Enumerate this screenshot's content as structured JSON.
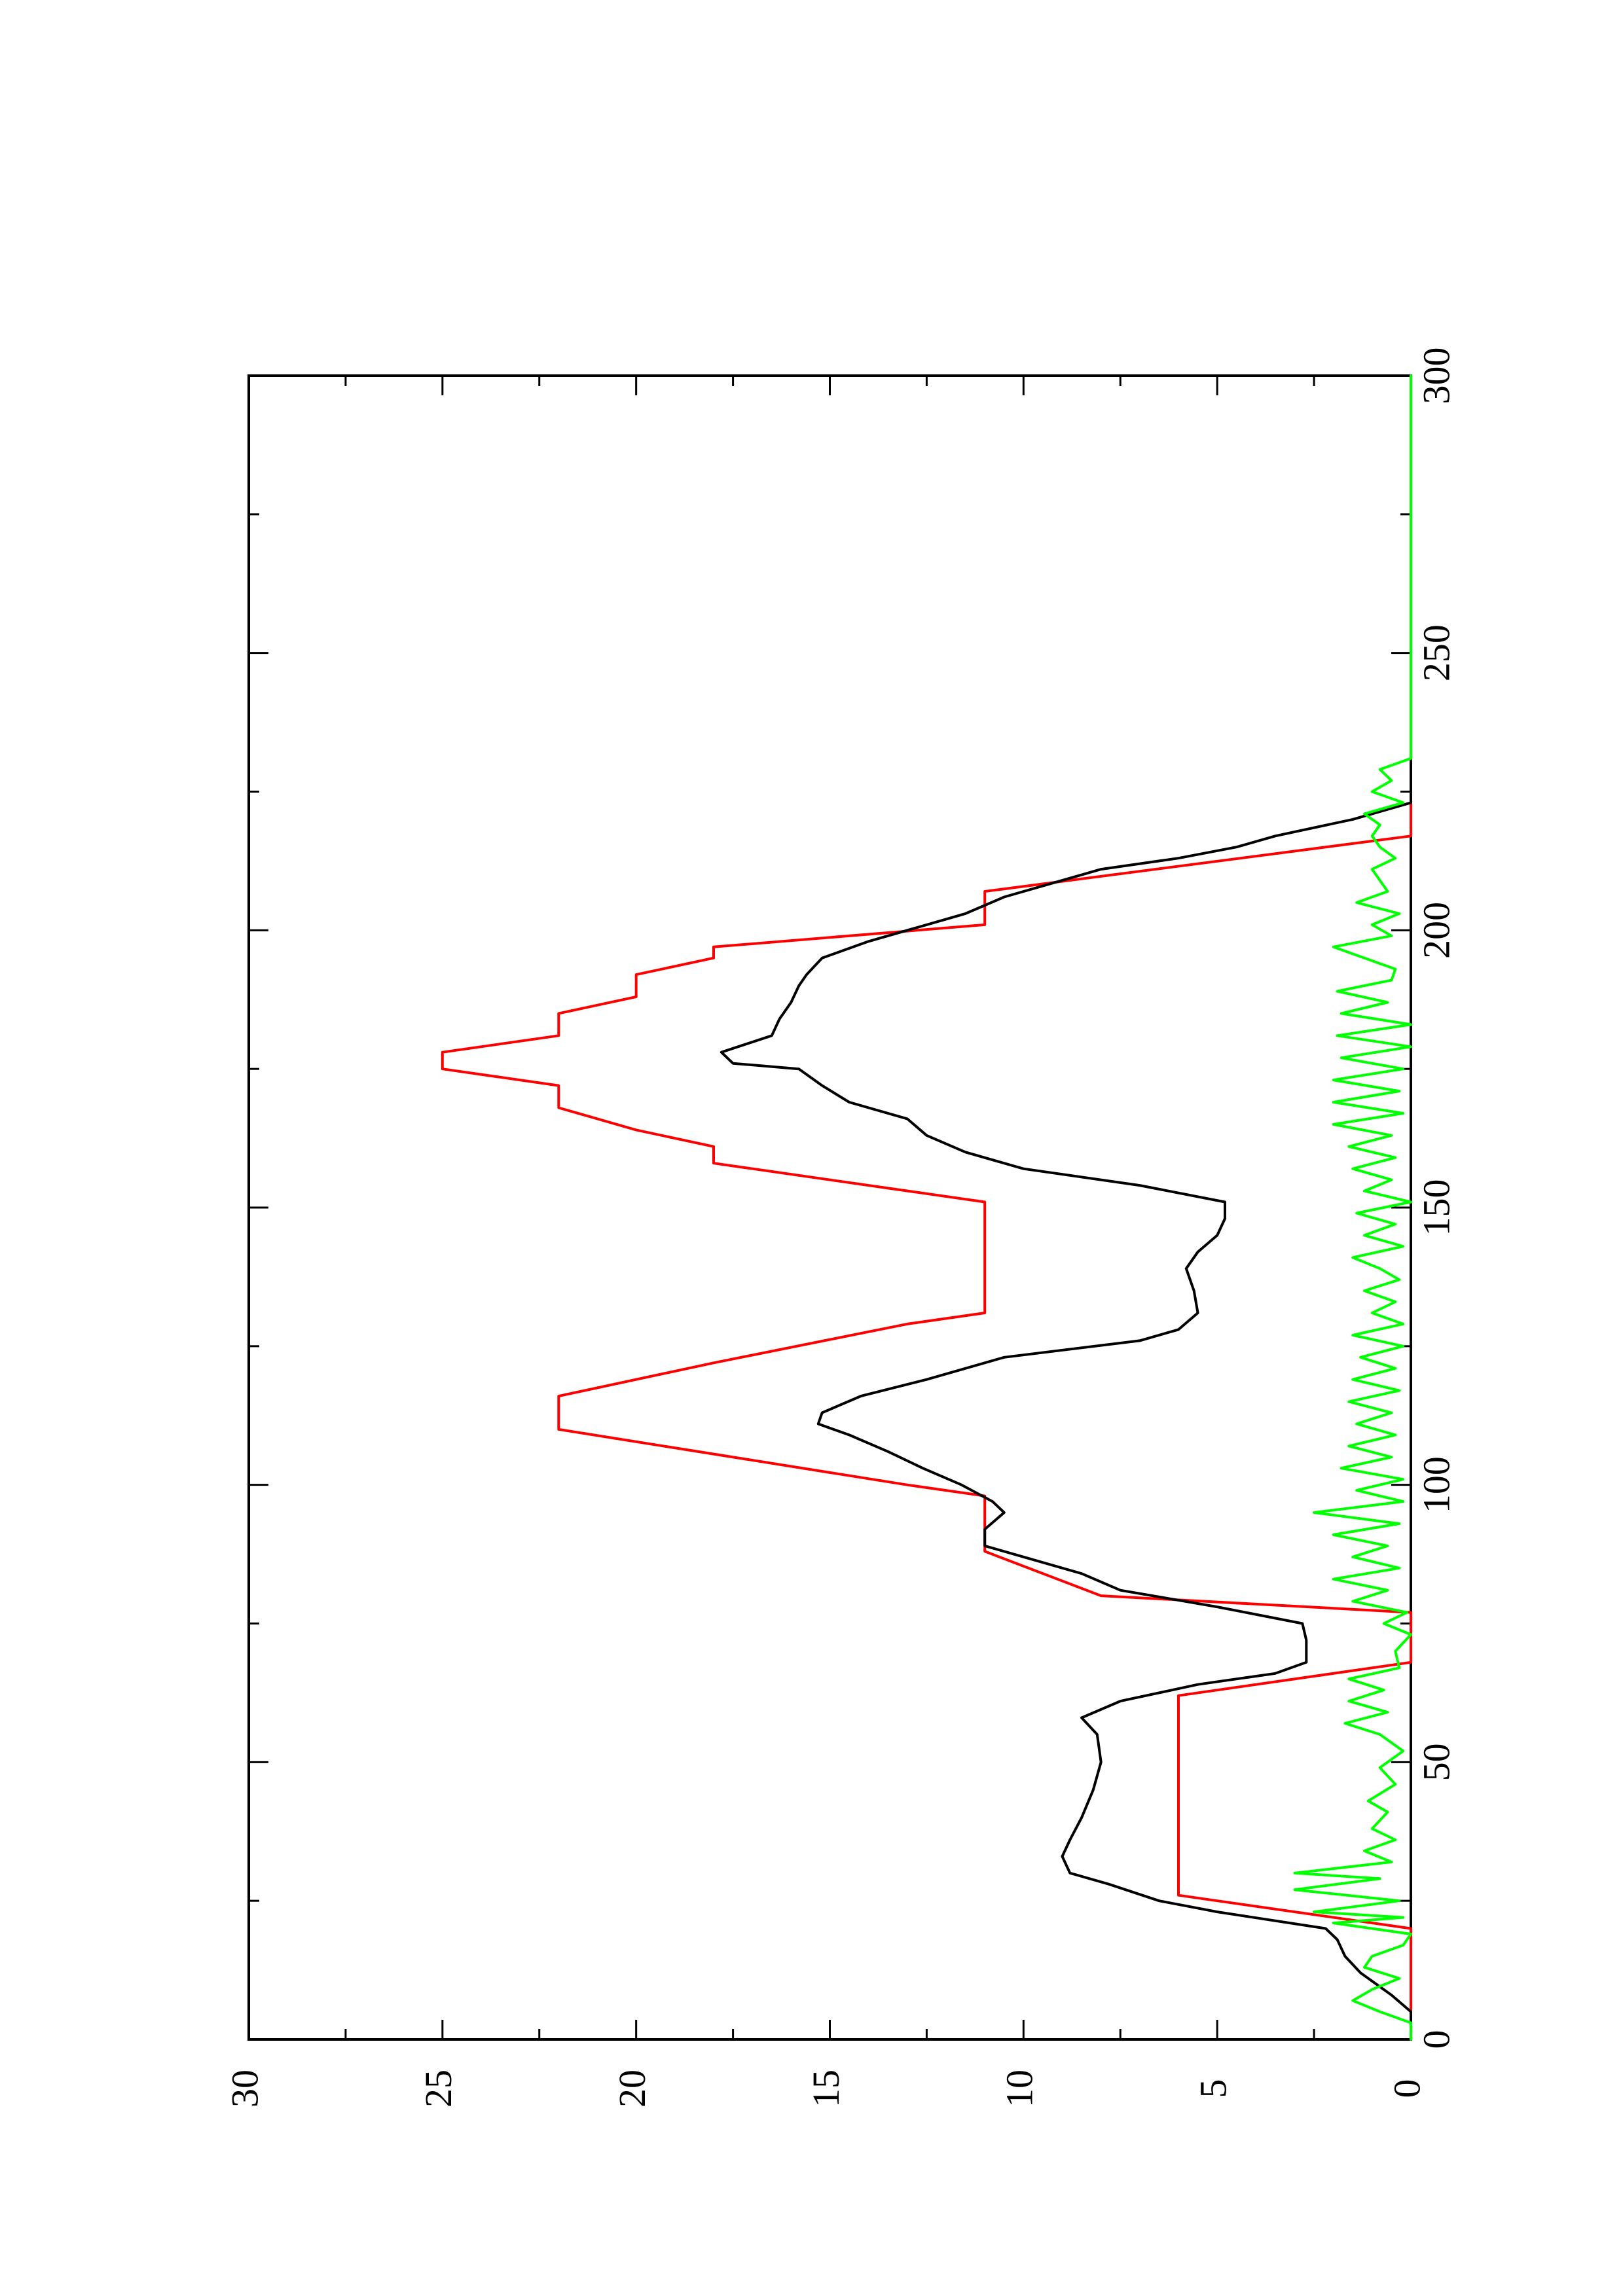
{
  "chart_data": {
    "type": "line",
    "title": "",
    "xlabel": "",
    "ylabel": "",
    "orientation": "rotated 90 degrees counter-clockwise",
    "xlim": [
      0,
      300
    ],
    "ylim": [
      0,
      30
    ],
    "x_ticks": [
      0,
      50,
      100,
      150,
      200,
      250,
      300
    ],
    "x_tick_labels": [
      "0",
      "50",
      "100",
      "150",
      "200",
      "250",
      "300"
    ],
    "y_ticks": [
      0,
      5,
      10,
      15,
      20,
      25,
      30
    ],
    "y_tick_labels": [
      "0",
      "5",
      "10",
      "15",
      "20",
      "25",
      "30"
    ],
    "x_minor_ticks": [
      25,
      75,
      125,
      175,
      225,
      275
    ],
    "y_minor_ticks": [
      2.5,
      7.5,
      12.5,
      17.5,
      22.5,
      27.5
    ],
    "grid": false,
    "legend": null,
    "series": [
      {
        "color": "#ff0000",
        "points": [
          [
            0,
            0
          ],
          [
            20,
            0
          ],
          [
            26,
            6
          ],
          [
            62,
            6
          ],
          [
            68,
            0
          ],
          [
            77,
            0
          ],
          [
            80,
            8
          ],
          [
            88,
            11
          ],
          [
            98,
            11
          ],
          [
            100,
            13
          ],
          [
            110,
            22
          ],
          [
            116,
            22
          ],
          [
            122,
            18
          ],
          [
            129,
            13
          ],
          [
            131,
            11
          ],
          [
            151,
            11
          ],
          [
            158,
            18
          ],
          [
            161,
            18
          ],
          [
            164,
            20
          ],
          [
            168,
            22
          ],
          [
            172,
            22
          ],
          [
            175,
            25
          ],
          [
            178,
            25
          ],
          [
            181,
            22
          ],
          [
            185,
            22
          ],
          [
            188,
            20
          ],
          [
            192,
            20
          ],
          [
            195,
            18
          ],
          [
            197,
            18
          ],
          [
            201,
            11
          ],
          [
            207,
            11
          ],
          [
            217,
            0
          ],
          [
            300,
            0
          ]
        ]
      },
      {
        "color": "#000000",
        "points": [
          [
            0,
            0
          ],
          [
            5,
            0
          ],
          [
            8,
            0.5
          ],
          [
            10,
            0.9
          ],
          [
            12,
            1.3
          ],
          [
            15,
            1.7
          ],
          [
            18,
            1.9
          ],
          [
            20,
            2.2
          ],
          [
            23,
            5.0
          ],
          [
            25,
            6.5
          ],
          [
            28,
            7.8
          ],
          [
            30,
            8.8
          ],
          [
            33,
            9.0
          ],
          [
            36,
            8.8
          ],
          [
            40,
            8.5
          ],
          [
            45,
            8.2
          ],
          [
            50,
            8.0
          ],
          [
            55,
            8.1
          ],
          [
            58,
            8.5
          ],
          [
            61,
            7.5
          ],
          [
            64,
            5.5
          ],
          [
            66,
            3.5
          ],
          [
            68,
            2.7
          ],
          [
            72,
            2.7
          ],
          [
            75,
            2.8
          ],
          [
            78,
            5.0
          ],
          [
            81,
            7.5
          ],
          [
            84,
            8.5
          ],
          [
            87,
            10.0
          ],
          [
            89,
            11.0
          ],
          [
            92,
            11.0
          ],
          [
            95,
            10.5
          ],
          [
            97,
            10.8
          ],
          [
            100,
            11.6
          ],
          [
            103,
            12.6
          ],
          [
            106,
            13.5
          ],
          [
            109,
            14.5
          ],
          [
            111,
            15.3
          ],
          [
            113,
            15.2
          ],
          [
            116,
            14.2
          ],
          [
            119,
            12.5
          ],
          [
            123,
            10.5
          ],
          [
            126,
            7.0
          ],
          [
            128,
            6.0
          ],
          [
            131,
            5.5
          ],
          [
            135,
            5.6
          ],
          [
            139,
            5.8
          ],
          [
            142,
            5.5
          ],
          [
            145,
            5.0
          ],
          [
            148,
            4.8
          ],
          [
            151,
            4.8
          ],
          [
            154,
            7.0
          ],
          [
            157,
            10.0
          ],
          [
            160,
            11.5
          ],
          [
            163,
            12.5
          ],
          [
            166,
            13.0
          ],
          [
            169,
            14.5
          ],
          [
            172,
            15.2
          ],
          [
            175,
            15.8
          ],
          [
            176,
            17.5
          ],
          [
            178,
            17.8
          ],
          [
            181,
            16.5
          ],
          [
            184,
            16.3
          ],
          [
            187,
            16.0
          ],
          [
            190,
            15.8
          ],
          [
            192,
            15.6
          ],
          [
            195,
            15.2
          ],
          [
            198,
            14.0
          ],
          [
            201,
            12.5
          ],
          [
            203,
            11.5
          ],
          [
            206,
            10.5
          ],
          [
            209,
            9.0
          ],
          [
            211,
            8.0
          ],
          [
            213,
            6.0
          ],
          [
            215,
            4.5
          ],
          [
            217,
            3.5
          ],
          [
            220,
            1.5
          ],
          [
            223,
            0
          ],
          [
            300,
            0
          ]
        ]
      },
      {
        "color": "#00ff00",
        "points": [
          [
            0,
            0
          ],
          [
            3,
            0
          ],
          [
            5,
            0.8
          ],
          [
            7,
            1.5
          ],
          [
            9,
            1.0
          ],
          [
            11,
            0.3
          ],
          [
            13,
            1.2
          ],
          [
            15,
            1.0
          ],
          [
            17,
            0.2
          ],
          [
            19,
            0
          ],
          [
            21,
            2.0
          ],
          [
            22,
            0.2
          ],
          [
            23,
            2.5
          ],
          [
            25,
            0.3
          ],
          [
            27,
            3.0
          ],
          [
            29,
            0.8
          ],
          [
            30,
            3.0
          ],
          [
            32,
            0.5
          ],
          [
            34,
            1.2
          ],
          [
            36,
            0.4
          ],
          [
            38,
            1.0
          ],
          [
            41,
            0.6
          ],
          [
            43,
            1.1
          ],
          [
            46,
            0.4
          ],
          [
            49,
            0.8
          ],
          [
            52,
            0.2
          ],
          [
            55,
            0.8
          ],
          [
            57,
            1.7
          ],
          [
            59,
            0.6
          ],
          [
            61,
            1.6
          ],
          [
            63,
            0.7
          ],
          [
            65,
            1.6
          ],
          [
            67,
            0.3
          ],
          [
            70,
            0.4
          ],
          [
            73,
            0
          ],
          [
            75,
            0.7
          ],
          [
            77,
            0.1
          ],
          [
            79,
            1.5
          ],
          [
            81,
            0.6
          ],
          [
            83,
            2.0
          ],
          [
            85,
            0.3
          ],
          [
            87,
            1.5
          ],
          [
            89,
            0.6
          ],
          [
            91,
            2.0
          ],
          [
            93,
            0.3
          ],
          [
            95,
            2.5
          ],
          [
            97,
            0.2
          ],
          [
            99,
            1.4
          ],
          [
            101,
            0.2
          ],
          [
            103,
            1.8
          ],
          [
            105,
            0.5
          ],
          [
            107,
            1.6
          ],
          [
            109,
            0.4
          ],
          [
            111,
            1.4
          ],
          [
            113,
            0.5
          ],
          [
            115,
            1.6
          ],
          [
            117,
            0.3
          ],
          [
            119,
            1.5
          ],
          [
            121,
            0.4
          ],
          [
            123,
            1.3
          ],
          [
            125,
            0.2
          ],
          [
            127,
            1.5
          ],
          [
            129,
            0.2
          ],
          [
            131,
            1.0
          ],
          [
            133,
            0.4
          ],
          [
            135,
            1.2
          ],
          [
            137,
            0.3
          ],
          [
            139,
            0.8
          ],
          [
            141,
            1.5
          ],
          [
            143,
            0.2
          ],
          [
            145,
            1.2
          ],
          [
            147,
            0.4
          ],
          [
            149,
            1.4
          ],
          [
            151,
            0
          ],
          [
            153,
            1.2
          ],
          [
            155,
            0.5
          ],
          [
            157,
            1.5
          ],
          [
            159,
            0.4
          ],
          [
            161,
            1.6
          ],
          [
            163,
            0.5
          ],
          [
            165,
            2.0
          ],
          [
            167,
            0.2
          ],
          [
            169,
            2.0
          ],
          [
            171,
            0.3
          ],
          [
            173,
            2.0
          ],
          [
            175,
            0.2
          ],
          [
            177,
            1.8
          ],
          [
            179,
            0
          ],
          [
            181,
            1.9
          ],
          [
            183,
            0
          ],
          [
            185,
            1.8
          ],
          [
            187,
            0.6
          ],
          [
            189,
            1.9
          ],
          [
            191,
            0.5
          ],
          [
            193,
            0.4
          ],
          [
            195,
            1.2
          ],
          [
            197,
            2.0
          ],
          [
            199,
            0.5
          ],
          [
            201,
            1.0
          ],
          [
            203,
            0.3
          ],
          [
            205,
            1.4
          ],
          [
            207,
            0.6
          ],
          [
            209,
            0.8
          ],
          [
            211,
            1.0
          ],
          [
            213,
            0.4
          ],
          [
            215,
            0.8
          ],
          [
            217,
            1.0
          ],
          [
            219,
            0.8
          ],
          [
            221,
            1.2
          ],
          [
            223,
            0.2
          ],
          [
            225,
            1.0
          ],
          [
            227,
            0.5
          ],
          [
            229,
            0.8
          ],
          [
            231,
            0
          ],
          [
            300,
            0
          ]
        ]
      }
    ]
  }
}
